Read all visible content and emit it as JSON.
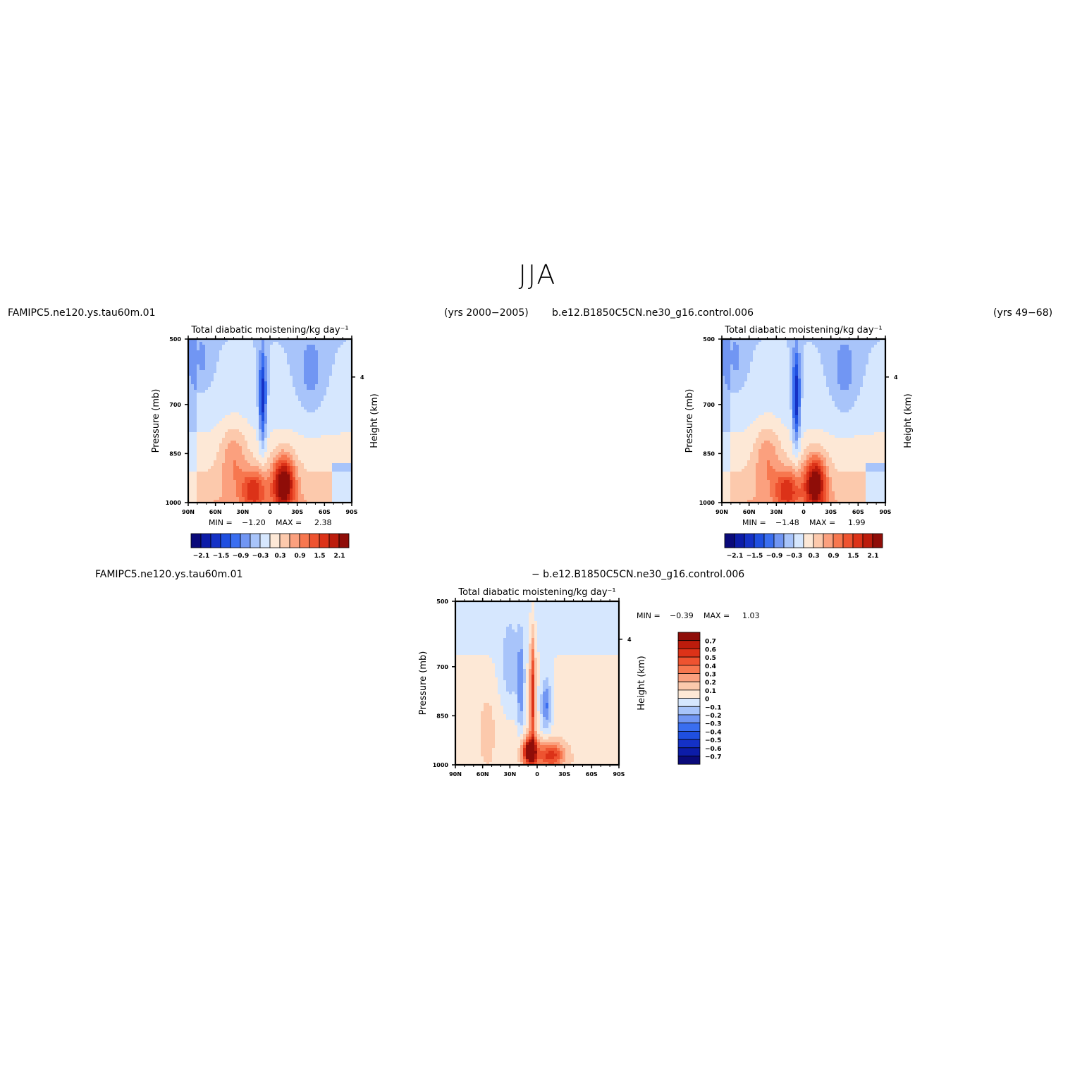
{
  "page": {
    "season_title": "JJA",
    "panel1_case": "FAMIPC5.ne120.ys.tau60m.01",
    "panel1_years": "(yrs 2000−2005)",
    "panel2_case": "b.e12.B1850C5CN.ne30_g16.control.006",
    "panel2_years": "(yrs 49−68)",
    "diff_case_a": "FAMIPC5.ne120.ys.tau60m.01",
    "diff_case_b": "− b.e12.B1850C5CN.ne30_g16.control.006"
  },
  "chart_data": [
    {
      "type": "heatmap",
      "id": "panel1",
      "title": "Total diabatic moistening/kg day⁻¹",
      "ylabel": "Pressure (mb)",
      "y2label": "Height (km)",
      "x_ticks": [
        "90N",
        "60N",
        "30N",
        "0",
        "30S",
        "60S",
        "90S"
      ],
      "y_ticks": [
        "500",
        "700",
        "850",
        "1000"
      ],
      "y2_ticks": [
        "4"
      ],
      "ylim": [
        1000,
        500
      ],
      "stats": {
        "min_label": "MIN =",
        "min": "−1.20",
        "max_label": "MAX =",
        "max": "2.38"
      },
      "colorbar_labels": [
        "−2.1",
        "−1.5",
        "−0.9",
        "−0.3",
        "0.3",
        "0.9",
        "1.5",
        "2.1"
      ],
      "levels": [
        -2.4,
        -2.1,
        -1.8,
        -1.5,
        -1.2,
        -0.9,
        -0.6,
        -0.3,
        0,
        0.3,
        0.6,
        0.9,
        1.2,
        1.5,
        1.8,
        2.1,
        2.4
      ],
      "colors": [
        "#0a0a7a",
        "#0c1ca8",
        "#1431c6",
        "#1f4fe0",
        "#3a6ef0",
        "#7196f3",
        "#a8c4fa",
        "#d6e7fe",
        "#fde8d6",
        "#fcc9ac",
        "#fba07e",
        "#f7774f",
        "#ee5330",
        "#dc3218",
        "#bc1c0c",
        "#8f0d08"
      ]
    },
    {
      "type": "heatmap",
      "id": "panel2",
      "title": "Total diabatic moistening/kg day⁻¹",
      "ylabel": "Pressure (mb)",
      "y2label": "Height (km)",
      "x_ticks": [
        "90N",
        "60N",
        "30N",
        "0",
        "30S",
        "60S",
        "90S"
      ],
      "y_ticks": [
        "500",
        "700",
        "850",
        "1000"
      ],
      "y2_ticks": [
        "4"
      ],
      "ylim": [
        1000,
        500
      ],
      "stats": {
        "min_label": "MIN =",
        "min": "−1.48",
        "max_label": "MAX =",
        "max": "1.99"
      },
      "colorbar_labels": [
        "−2.1",
        "−1.5",
        "−0.9",
        "−0.3",
        "0.3",
        "0.9",
        "1.5",
        "2.1"
      ],
      "levels": [
        -2.4,
        -2.1,
        -1.8,
        -1.5,
        -1.2,
        -0.9,
        -0.6,
        -0.3,
        0,
        0.3,
        0.6,
        0.9,
        1.2,
        1.5,
        1.8,
        2.1,
        2.4
      ],
      "colors": [
        "#0a0a7a",
        "#0c1ca8",
        "#1431c6",
        "#1f4fe0",
        "#3a6ef0",
        "#7196f3",
        "#a8c4fa",
        "#d6e7fe",
        "#fde8d6",
        "#fcc9ac",
        "#fba07e",
        "#f7774f",
        "#ee5330",
        "#dc3218",
        "#bc1c0c",
        "#8f0d08"
      ]
    },
    {
      "type": "heatmap",
      "id": "difference",
      "title": "Total diabatic moistening/kg day⁻¹",
      "ylabel": "Pressure (mb)",
      "y2label": "Height (km)",
      "x_ticks": [
        "90N",
        "60N",
        "30N",
        "0",
        "30S",
        "60S",
        "90S"
      ],
      "y_ticks": [
        "500",
        "700",
        "850",
        "1000"
      ],
      "y2_ticks": [
        "4"
      ],
      "ylim": [
        1000,
        500
      ],
      "stats": {
        "min_label": "MIN =",
        "min": "−0.39",
        "max_label": "MAX =",
        "max": "1.03"
      },
      "colorbar_labels": [
        "0.7",
        "0.6",
        "0.5",
        "0.4",
        "0.3",
        "0.2",
        "0.1",
        "0",
        "−0.1",
        "−0.2",
        "−0.3",
        "−0.4",
        "−0.5",
        "−0.6",
        "−0.7"
      ],
      "levels": [
        -0.8,
        -0.7,
        -0.6,
        -0.5,
        -0.4,
        -0.3,
        -0.2,
        -0.1,
        0,
        0.1,
        0.2,
        0.3,
        0.4,
        0.5,
        0.6,
        0.7,
        0.8
      ],
      "colors": [
        "#0a0a7a",
        "#0c1ca8",
        "#1431c6",
        "#1f4fe0",
        "#3a6ef0",
        "#7196f3",
        "#a8c4fa",
        "#d6e7fe",
        "#fde8d6",
        "#fcc9ac",
        "#fba07e",
        "#f7774f",
        "#ee5330",
        "#dc3218",
        "#bc1c0c",
        "#8f0d08"
      ]
    }
  ]
}
